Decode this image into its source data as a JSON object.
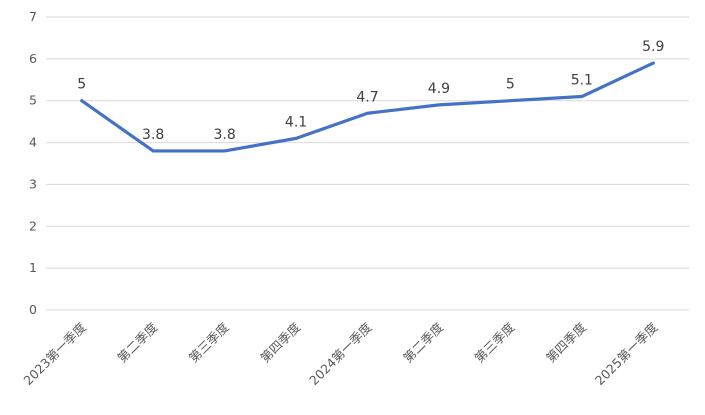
{
  "chart_data": {
    "type": "line",
    "title": "",
    "xlabel": "",
    "ylabel": "",
    "categories": [
      "2023第一季度",
      "第二季度",
      "第三季度",
      "第四季度",
      "2024第一季度",
      "第二季度",
      "第三季度",
      "第四季度",
      "2025第一季度"
    ],
    "values": [
      5,
      3.8,
      3.8,
      4.1,
      4.7,
      4.9,
      5,
      5.1,
      5.9
    ],
    "data_labels": [
      "5",
      "3.8",
      "3.8",
      "4.1",
      "4.7",
      "4.9",
      "5",
      "5.1",
      "5.9"
    ],
    "ylim": [
      0,
      7
    ],
    "ytick_step": 1,
    "yticks": [
      "0",
      "1",
      "2",
      "3",
      "4",
      "5",
      "6",
      "7"
    ],
    "grid": true,
    "legend_position": "none",
    "colors": {
      "line": "#4472C4",
      "grid": "#D9D9D9",
      "tick_label": "#595959",
      "data_label": "#404040",
      "background": "#FFFFFF"
    }
  }
}
